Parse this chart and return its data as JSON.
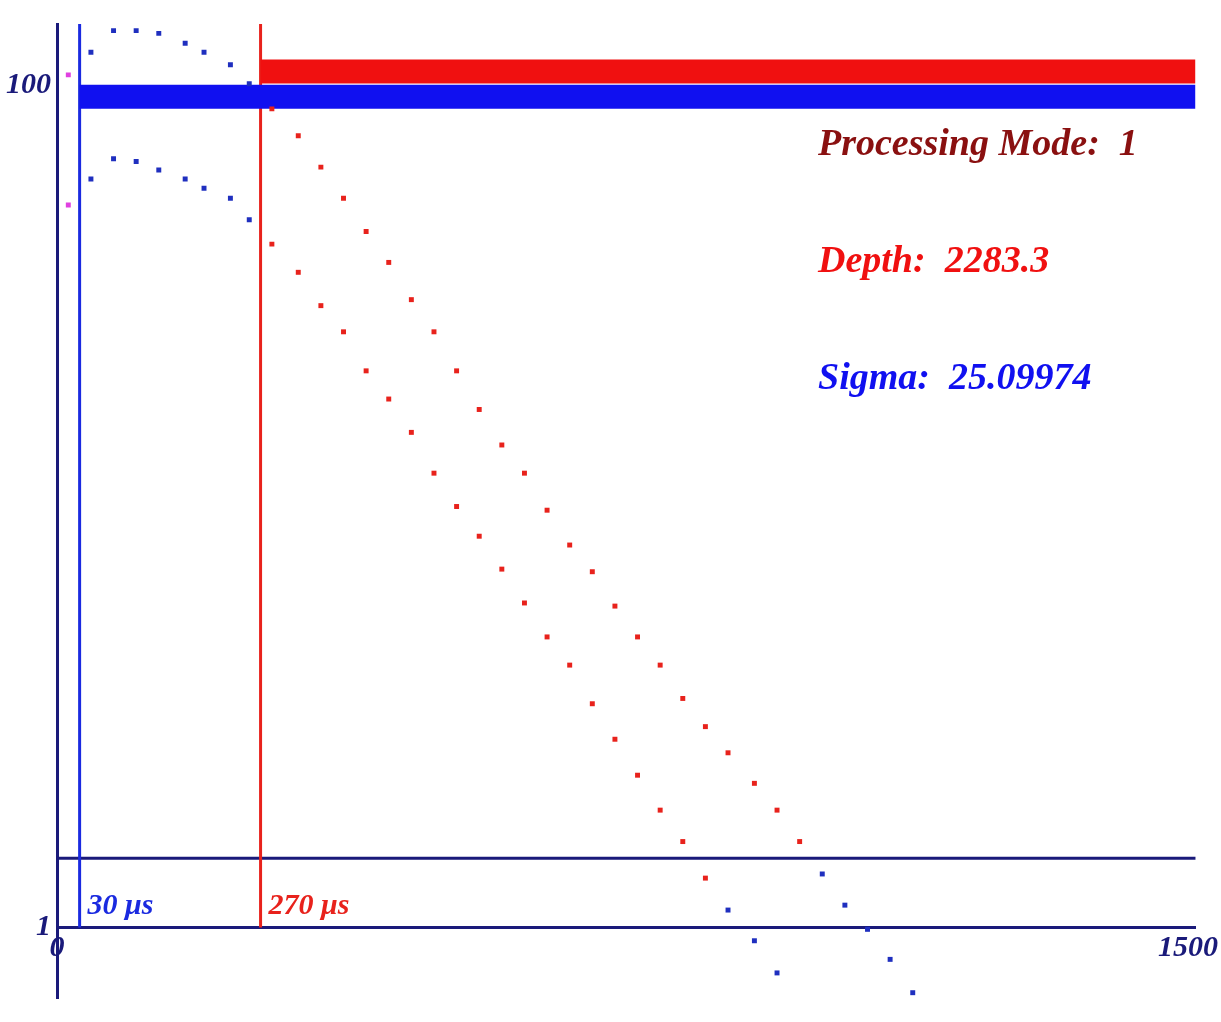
{
  "chart_data": {
    "type": "scatter",
    "marker": "square",
    "log": "y",
    "grid": false,
    "xlim": [
      0,
      1510
    ],
    "xticks": [
      0,
      1500
    ],
    "ylim": [
      0.68,
      140
    ],
    "yticks": [
      1,
      100
    ],
    "series": [
      {
        "type": "scatter",
        "x": [
          15,
          45,
          75,
          105,
          135,
          170,
          195,
          230,
          255,
          285,
          320,
          350,
          380,
          410,
          440,
          470,
          500,
          530,
          560,
          590,
          620,
          650,
          680,
          710,
          740,
          770,
          800,
          830,
          860,
          890,
          925,
          955,
          985,
          1015,
          1045,
          1075,
          1105,
          1135
        ],
        "values": [
          106,
          120,
          135,
          135,
          133,
          126,
          120,
          112,
          101,
          88,
          76,
          64,
          54,
          45,
          38,
          31,
          26,
          21,
          17,
          14,
          12,
          9.8,
          8.1,
          7.0,
          5.8,
          4.9,
          4.2,
          3.5,
          3.0,
          2.6,
          2.2,
          1.9,
          1.6,
          1.34,
          1.13,
          0.99,
          0.84,
          0.7
        ],
        "colors": [
          "#e040e0",
          "#1f2fbf",
          "#1f2fbf",
          "#1f2fbf",
          "#1f2fbf",
          "#1f2fbf",
          "#1f2fbf",
          "#1f2fbf",
          "#1f2fbf",
          "#e8221c",
          "#e8221c",
          "#e8221c",
          "#e8221c",
          "#e8221c",
          "#e8221c",
          "#e8221c",
          "#e8221c",
          "#e8221c",
          "#e8221c",
          "#e8221c",
          "#e8221c",
          "#e8221c",
          "#e8221c",
          "#e8221c",
          "#e8221c",
          "#e8221c",
          "#e8221c",
          "#e8221c",
          "#e8221c",
          "#e8221c",
          "#e8221c",
          "#e8221c",
          "#e8221c",
          "#1f2fbf",
          "#1f2fbf",
          "#1f2fbf",
          "#1f2fbf",
          "#1f2fbf"
        ]
      },
      {
        "x": [
          15,
          45,
          75,
          105,
          135,
          170,
          195,
          230,
          255,
          285,
          320,
          350,
          380,
          410,
          440,
          470,
          500,
          530,
          560,
          590,
          620,
          650,
          680,
          710,
          740,
          770,
          800,
          830,
          860,
          890,
          925,
          955
        ],
        "values": [
          52,
          60,
          67,
          66,
          63,
          60,
          57,
          54,
          48,
          42,
          36,
          30,
          26,
          21,
          18,
          15,
          12,
          10,
          8.5,
          7.1,
          5.9,
          4.9,
          4.2,
          3.4,
          2.8,
          2.3,
          1.9,
          1.6,
          1.31,
          1.1,
          0.93,
          0.78
        ],
        "colors": [
          "#e040e0",
          "#1f2fbf",
          "#1f2fbf",
          "#1f2fbf",
          "#1f2fbf",
          "#1f2fbf",
          "#1f2fbf",
          "#1f2fbf",
          "#1f2fbf",
          "#e8221c",
          "#e8221c",
          "#e8221c",
          "#e8221c",
          "#e8221c",
          "#e8221c",
          "#e8221c",
          "#e8221c",
          "#e8221c",
          "#e8221c",
          "#e8221c",
          "#e8221c",
          "#e8221c",
          "#e8221c",
          "#e8221c",
          "#e8221c",
          "#e8221c",
          "#e8221c",
          "#e8221c",
          "#e8221c",
          "#1f2fbf",
          "#1f2fbf",
          "#1f2fbf"
        ]
      },
      {
        "type": "line",
        "x": [
          270,
          1510
        ],
        "values": [
          108,
          108
        ],
        "color": "#f01010",
        "marker": "none"
      },
      {
        "type": "line",
        "x": [
          30,
          1510
        ],
        "values": [
          94,
          94
        ],
        "color": "#1010f0",
        "marker": "none"
      }
    ],
    "ref_lines": [
      {
        "axis": "y",
        "value": 1,
        "label": null,
        "color": "#1a1a7a"
      },
      {
        "axis": "y",
        "value": 1.46,
        "label": null,
        "color": "#1a1a7a"
      },
      {
        "axis": "x",
        "value": 30,
        "label": "30 μs",
        "color": "#1a2ae0"
      },
      {
        "axis": "x",
        "value": 270,
        "label": "270 μs",
        "color": "#e8221c"
      }
    ],
    "annotations": [
      "Processing Mode:  1",
      "Depth:  2283.3",
      "Sigma:  25.09974"
    ]
  }
}
